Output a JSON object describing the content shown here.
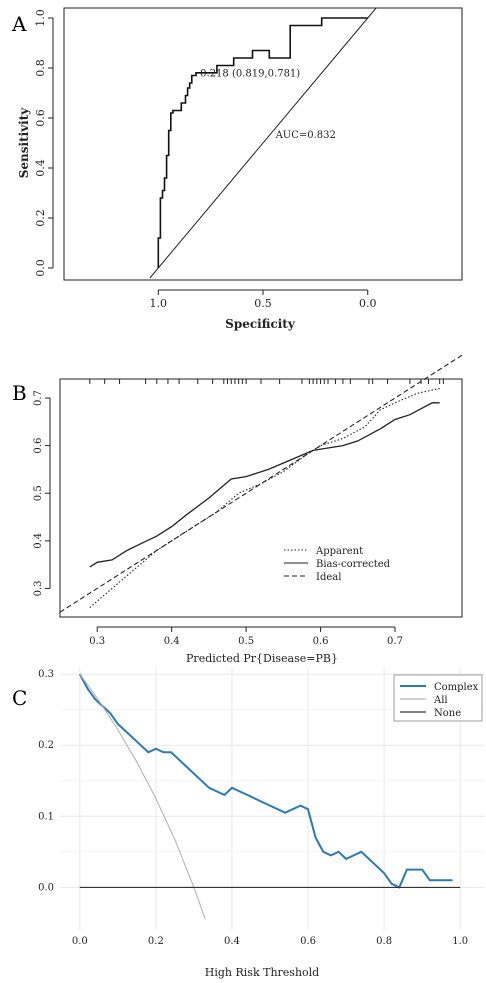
{
  "panels": {
    "A": {
      "label": "A"
    },
    "B": {
      "label": "B"
    },
    "C": {
      "label": "C"
    }
  },
  "chart_data": [
    {
      "panel": "A",
      "type": "line",
      "xlabel": "Specificity",
      "ylabel": "Sensitivity",
      "xlim": [
        1.45,
        -0.45
      ],
      "ylim": [
        0.0,
        1.0
      ],
      "x_ticks": [
        "1.0",
        "0.5",
        "0.0"
      ],
      "y_ticks": [
        "0.0",
        "0.2",
        "0.4",
        "0.6",
        "0.8",
        "1.0"
      ],
      "grid": false,
      "series": [
        {
          "name": "",
          "x": [
            1.0,
            1.0,
            0.99,
            0.99,
            0.98,
            0.98,
            0.97,
            0.97,
            0.96,
            0.96,
            0.95,
            0.95,
            0.94,
            0.94,
            0.93,
            0.93,
            0.92,
            0.92,
            0.89,
            0.89,
            0.87,
            0.87,
            0.86,
            0.86,
            0.85,
            0.85,
            0.84,
            0.84,
            0.82,
            0.82,
            0.72,
            0.72,
            0.64,
            0.64,
            0.55,
            0.55,
            0.47,
            0.47,
            0.37,
            0.37,
            0.22,
            0.22,
            0.0
          ],
          "y": [
            0.0,
            0.12,
            0.12,
            0.28,
            0.28,
            0.31,
            0.31,
            0.36,
            0.36,
            0.45,
            0.45,
            0.55,
            0.55,
            0.62,
            0.62,
            0.63,
            0.63,
            0.63,
            0.63,
            0.66,
            0.66,
            0.69,
            0.69,
            0.72,
            0.72,
            0.74,
            0.74,
            0.77,
            0.77,
            0.781,
            0.781,
            0.81,
            0.81,
            0.84,
            0.84,
            0.87,
            0.87,
            0.84,
            0.84,
            0.97,
            0.97,
            1.0,
            1.0
          ]
        }
      ],
      "reference_line": {
        "x": [
          1.0,
          0.0
        ],
        "y": [
          0.0,
          1.0
        ]
      },
      "annotations": [
        {
          "text": "0.218 (0.819,0.781)",
          "x": 0.819,
          "y": 0.781
        },
        {
          "text": "AUC=0.832",
          "x": 0.5,
          "y": 0.52
        }
      ]
    },
    {
      "panel": "B",
      "type": "line",
      "xlabel": "Predicted Pr{Disease=PB}",
      "ylabel": "",
      "xlim": [
        0.25,
        0.79
      ],
      "ylim": [
        0.24,
        0.74
      ],
      "x_ticks": [
        "0.3",
        "0.4",
        "0.5",
        "0.6",
        "0.7"
      ],
      "y_ticks": [
        "0.3",
        "0.4",
        "0.5",
        "0.6",
        "0.7"
      ],
      "grid": false,
      "legend_position": "bottom-center",
      "series": [
        {
          "name": "Apparent",
          "style": "dotted",
          "x": [
            0.29,
            0.32,
            0.35,
            0.38,
            0.42,
            0.46,
            0.49,
            0.52,
            0.55,
            0.58,
            0.6,
            0.63,
            0.66,
            0.68,
            0.7,
            0.73,
            0.76
          ],
          "y": [
            0.26,
            0.3,
            0.34,
            0.38,
            0.42,
            0.46,
            0.5,
            0.52,
            0.545,
            0.58,
            0.6,
            0.615,
            0.64,
            0.675,
            0.69,
            0.71,
            0.72
          ]
        },
        {
          "name": "Bias-corrected",
          "style": "solid",
          "x": [
            0.29,
            0.3,
            0.32,
            0.34,
            0.36,
            0.38,
            0.4,
            0.42,
            0.45,
            0.48,
            0.5,
            0.53,
            0.56,
            0.59,
            0.61,
            0.63,
            0.65,
            0.68,
            0.7,
            0.72,
            0.75,
            0.76
          ],
          "y": [
            0.345,
            0.355,
            0.36,
            0.38,
            0.395,
            0.41,
            0.43,
            0.455,
            0.49,
            0.53,
            0.535,
            0.55,
            0.57,
            0.59,
            0.595,
            0.6,
            0.61,
            0.635,
            0.655,
            0.665,
            0.69,
            0.69
          ]
        },
        {
          "name": "Ideal",
          "style": "dashed",
          "x": [
            0.25,
            0.79
          ],
          "y": [
            0.25,
            0.79
          ]
        }
      ],
      "rug": [
        0.29,
        0.31,
        0.33,
        0.365,
        0.38,
        0.395,
        0.41,
        0.435,
        0.455,
        0.47,
        0.475,
        0.48,
        0.485,
        0.49,
        0.495,
        0.5,
        0.52,
        0.545,
        0.575,
        0.585,
        0.59,
        0.595,
        0.6,
        0.605,
        0.61,
        0.62,
        0.63,
        0.64,
        0.665,
        0.67,
        0.69,
        0.72,
        0.735,
        0.745,
        0.76,
        0.765
      ]
    },
    {
      "panel": "C",
      "type": "line",
      "xlabel": "High Risk Threshold",
      "ylabel": "",
      "xlim": [
        -0.01,
        1.01
      ],
      "ylim": [
        -0.06,
        0.31
      ],
      "x_ticks": [
        "0.0",
        "0.2",
        "0.4",
        "0.6",
        "0.8",
        "1.0"
      ],
      "y_ticks": [
        "0.0",
        "0.1",
        "0.2",
        "0.3"
      ],
      "grid": true,
      "legend_position": "top-right",
      "colors": {
        "Complex": "#2a7ab3",
        "All": "#b5b5b5",
        "None": "#333333"
      },
      "series": [
        {
          "name": "Complex",
          "x": [
            0.0,
            0.02,
            0.04,
            0.06,
            0.08,
            0.1,
            0.12,
            0.14,
            0.16,
            0.18,
            0.2,
            0.22,
            0.24,
            0.26,
            0.28,
            0.3,
            0.32,
            0.34,
            0.36,
            0.38,
            0.4,
            0.42,
            0.44,
            0.46,
            0.48,
            0.5,
            0.52,
            0.54,
            0.56,
            0.58,
            0.6,
            0.62,
            0.64,
            0.66,
            0.68,
            0.7,
            0.72,
            0.74,
            0.76,
            0.78,
            0.8,
            0.82,
            0.84,
            0.86,
            0.88,
            0.9,
            0.92,
            0.94,
            0.96,
            0.98
          ],
          "y": [
            0.3,
            0.28,
            0.265,
            0.255,
            0.245,
            0.23,
            0.22,
            0.21,
            0.2,
            0.19,
            0.195,
            0.19,
            0.19,
            0.18,
            0.17,
            0.16,
            0.15,
            0.14,
            0.135,
            0.13,
            0.14,
            0.135,
            0.13,
            0.125,
            0.12,
            0.115,
            0.11,
            0.105,
            0.11,
            0.115,
            0.11,
            0.07,
            0.05,
            0.045,
            0.05,
            0.04,
            0.045,
            0.05,
            0.04,
            0.03,
            0.02,
            0.005,
            0.0,
            0.025,
            0.025,
            0.025,
            0.01,
            0.01,
            0.01,
            0.01
          ]
        },
        {
          "name": "All",
          "x": [
            0.0,
            0.05,
            0.1,
            0.15,
            0.2,
            0.25,
            0.3,
            0.33
          ],
          "y": [
            0.3,
            0.263,
            0.222,
            0.176,
            0.125,
            0.067,
            0.0,
            -0.045
          ]
        },
        {
          "name": "None",
          "x": [
            0.0,
            1.0
          ],
          "y": [
            0.0,
            0.0
          ]
        }
      ]
    }
  ]
}
